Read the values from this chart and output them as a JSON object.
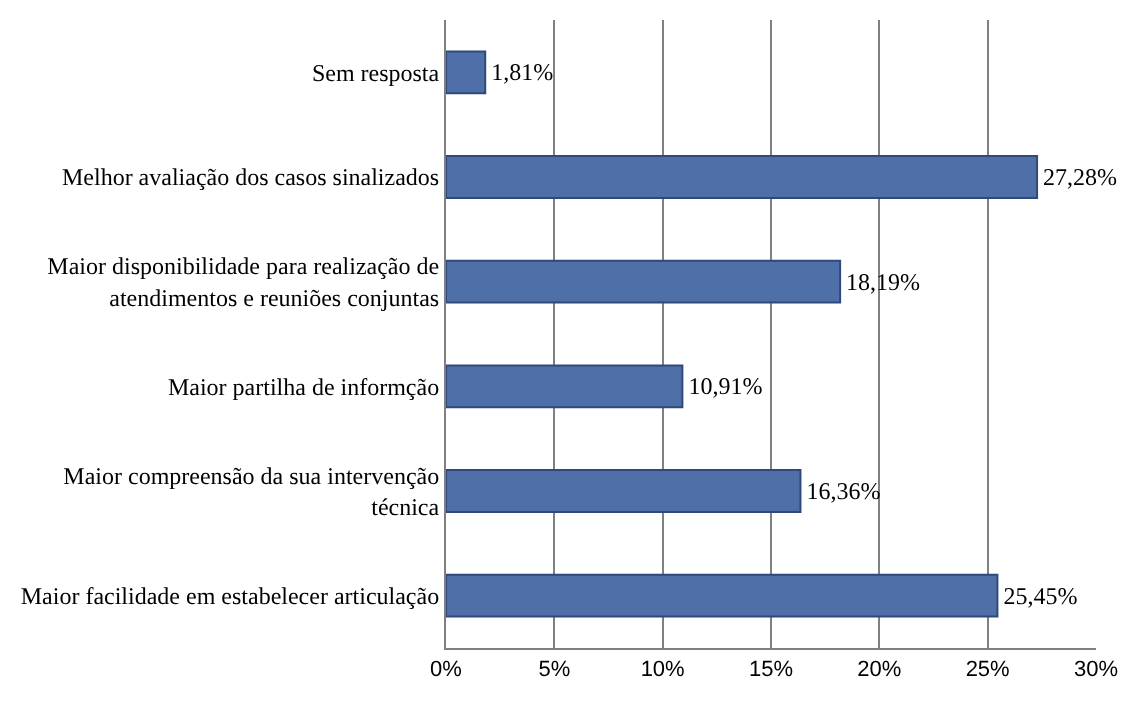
{
  "chart_data": {
    "type": "bar",
    "orientation": "horizontal",
    "categories": [
      "Sem resposta",
      "Melhor avaliação dos casos sinalizados",
      "Maior disponibilidade para realização de\natendimentos e reuniões conjuntas",
      "Maior partilha de informção",
      "Maior compreensão da sua intervenção\ntécnica",
      "Maior facilidade em estabelecer articulação"
    ],
    "values": [
      1.81,
      27.28,
      18.19,
      10.91,
      16.36,
      25.45
    ],
    "value_labels": [
      "1,81%",
      "27,28%",
      "18,19%",
      "10,91%",
      "16,36%",
      "25,45%"
    ],
    "color": "#4f6fa8",
    "xlim": [
      0,
      30
    ],
    "xticks": [
      {
        "value": 0,
        "label": "0%"
      },
      {
        "value": 5,
        "label": "5%"
      },
      {
        "value": 10,
        "label": "10%"
      },
      {
        "value": 15,
        "label": "15%"
      },
      {
        "value": 20,
        "label": "20%"
      },
      {
        "value": 25,
        "label": "25%"
      },
      {
        "value": 30,
        "label": "30%"
      }
    ],
    "grid": "x",
    "legend": false
  }
}
